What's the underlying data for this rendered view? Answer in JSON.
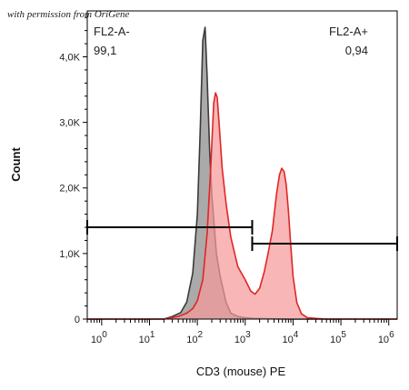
{
  "watermark": "with permission from OriGene",
  "chart_data": {
    "type": "area",
    "xlabel": "CD3 (mouse) PE",
    "ylabel": "Count",
    "xscale": "log",
    "xlim": [
      0.5,
      1500000
    ],
    "ylim": [
      0,
      4700
    ],
    "grid": false,
    "legend": "none",
    "x_ticks": [
      {
        "value": 1,
        "base": "10",
        "exp": "0"
      },
      {
        "value": 10,
        "base": "10",
        "exp": "1"
      },
      {
        "value": 100,
        "base": "10",
        "exp": "2"
      },
      {
        "value": 1000,
        "base": "10",
        "exp": "3"
      },
      {
        "value": 10000,
        "base": "10",
        "exp": "4"
      },
      {
        "value": 100000,
        "base": "10",
        "exp": "5"
      },
      {
        "value": 1000000,
        "base": "10",
        "exp": "6"
      }
    ],
    "y_ticks": [
      {
        "value": 0,
        "label": "0"
      },
      {
        "value": 1000,
        "label": "1,0K"
      },
      {
        "value": 2000,
        "label": "2,0K"
      },
      {
        "value": 3000,
        "label": "3,0K"
      },
      {
        "value": 4000,
        "label": "4,0K"
      }
    ],
    "series": [
      {
        "fill": "#a5a5a5",
        "line": "#3a3a3a",
        "x": [
          0.5,
          20,
          30,
          45,
          60,
          80,
          100,
          115,
          130,
          145,
          160,
          180,
          200,
          250,
          300,
          400,
          500,
          700,
          1000,
          1500,
          3000,
          10000,
          100000,
          1000000,
          1500000
        ],
        "y": [
          0,
          0,
          40,
          100,
          260,
          700,
          1600,
          2900,
          4250,
          4450,
          3700,
          2600,
          1900,
          1000,
          650,
          250,
          90,
          40,
          20,
          10,
          5,
          0,
          0,
          0,
          0
        ]
      },
      {
        "fill": "#f59a9a",
        "line": "#e02626",
        "x": [
          0.5,
          20,
          40,
          60,
          80,
          100,
          130,
          160,
          190,
          220,
          240,
          260,
          290,
          330,
          400,
          500,
          700,
          1000,
          1300,
          1600,
          2000,
          2500,
          3000,
          3700,
          4500,
          5200,
          5800,
          6500,
          7200,
          8000,
          9000,
          10000,
          12000,
          15000,
          20000,
          50000,
          200000,
          1000000,
          1500000
        ],
        "y": [
          0,
          0,
          40,
          90,
          160,
          280,
          600,
          1300,
          2300,
          3300,
          3450,
          3380,
          2900,
          2300,
          1750,
          1250,
          800,
          600,
          430,
          380,
          470,
          720,
          1000,
          1350,
          1900,
          2200,
          2300,
          2250,
          2050,
          1650,
          1100,
          650,
          250,
          80,
          20,
          0,
          0,
          0,
          0
        ]
      }
    ],
    "gates": [
      {
        "name": "FL2-A-",
        "pct": "99,1",
        "x_from": 0.5,
        "x_to": 1400,
        "y": 1400
      },
      {
        "name": "FL2-A+",
        "pct": "0,94",
        "x_from": 1400,
        "x_to": 1500000,
        "y": 1150
      }
    ]
  }
}
